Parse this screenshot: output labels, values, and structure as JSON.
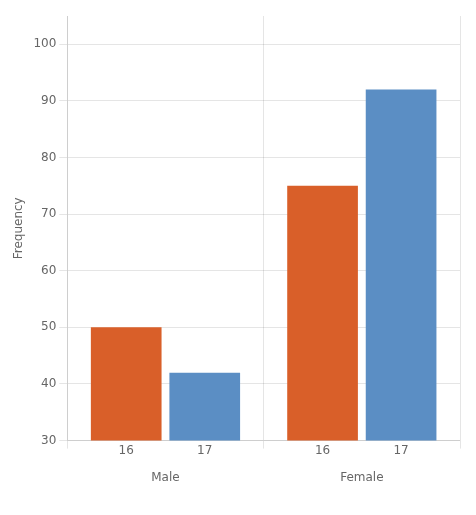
{
  "chart_data": {
    "type": "bar",
    "categories": [
      "Male",
      "Female"
    ],
    "series": [
      {
        "name": "16",
        "color": "#d95f29",
        "values": [
          50,
          75
        ]
      },
      {
        "name": "17",
        "color": "#5b8ec4",
        "values": [
          42,
          92
        ]
      }
    ],
    "ylabel": "Frequency",
    "ylim": [
      30,
      105
    ],
    "yticks": [
      30,
      40,
      50,
      60,
      70,
      80,
      90,
      100
    ],
    "grid": true
  }
}
